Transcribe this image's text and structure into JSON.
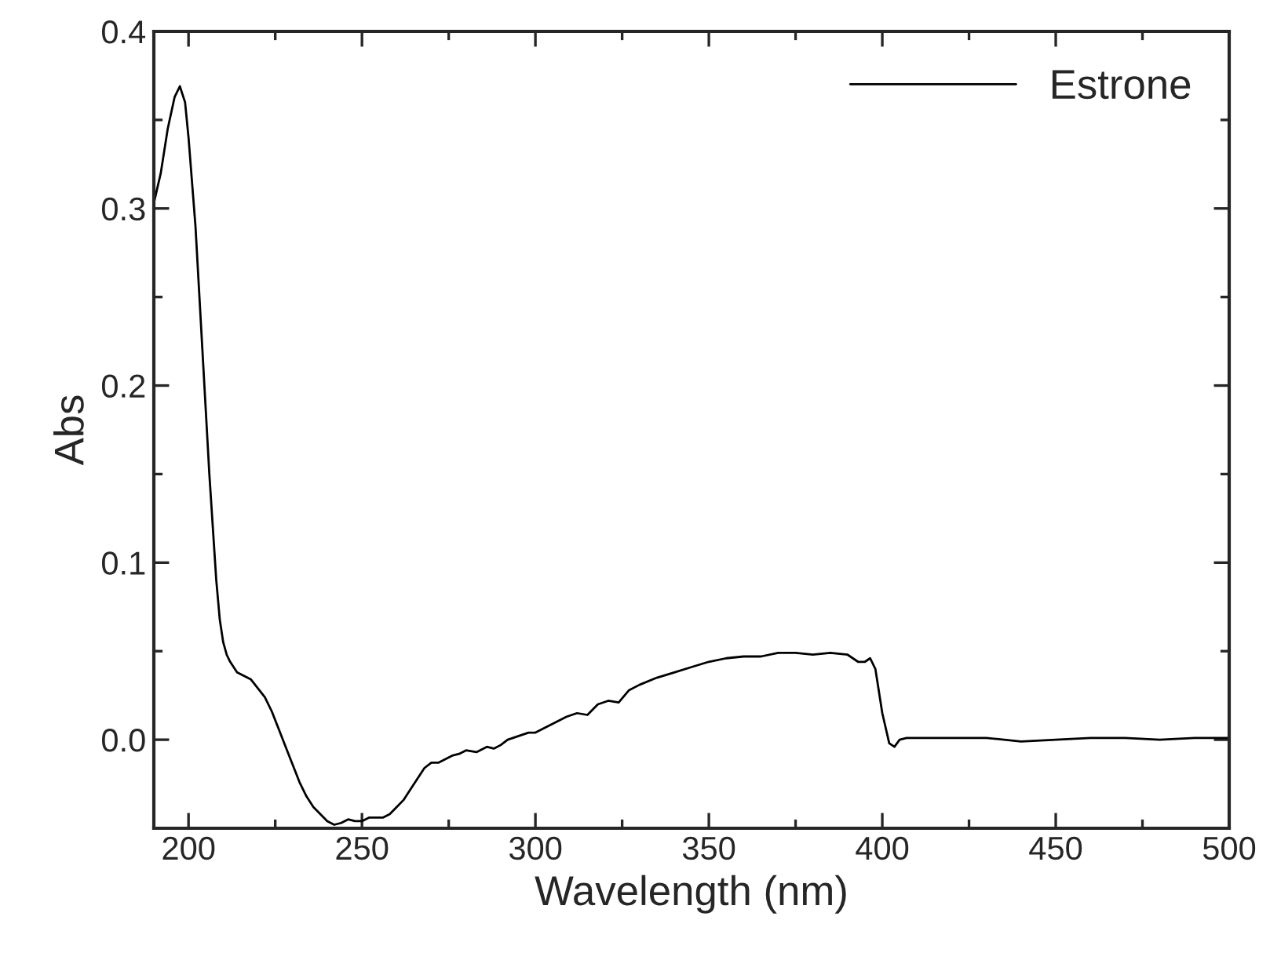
{
  "chart_data": {
    "type": "line",
    "xlabel": "Wavelength (nm)",
    "ylabel": "Abs",
    "xlim": [
      190,
      500
    ],
    "ylim": [
      -0.05,
      0.4
    ],
    "xticks": [
      200,
      250,
      300,
      350,
      400,
      450,
      500
    ],
    "yticks": [
      {
        "value": 0,
        "label": "0.0"
      },
      {
        "value": 0.1,
        "label": "0.1"
      },
      {
        "value": 0.2,
        "label": "0.2"
      },
      {
        "value": 0.3,
        "label": "0.3"
      },
      {
        "value": 0.4,
        "label": "0.4"
      }
    ],
    "legend": "top right",
    "grid": false,
    "marker": "none",
    "line_style": "solid",
    "series": [
      {
        "name": "Estrone",
        "color": "#000000",
        "x": [
          190,
          192,
          194,
          196,
          197.5,
          199,
          200,
          202,
          204,
          206,
          208,
          209,
          210,
          211,
          212,
          214,
          216,
          218,
          220,
          222,
          224,
          226,
          228,
          230,
          232,
          234,
          236,
          238,
          240,
          242,
          244,
          246,
          248,
          250,
          252,
          254,
          256,
          258,
          260,
          262,
          264,
          266,
          268,
          270,
          272,
          274,
          276,
          278,
          280,
          283,
          286,
          288,
          290,
          292,
          295,
          298,
          300,
          303,
          306,
          309,
          312,
          315,
          318,
          321,
          324,
          327,
          330,
          335,
          340,
          345,
          350,
          355,
          360,
          365,
          370,
          375,
          380,
          385,
          390,
          393,
          395,
          396.5,
          398,
          400,
          402,
          403.5,
          405,
          407,
          410,
          420,
          430,
          440,
          450,
          460,
          470,
          480,
          490,
          500
        ],
        "values": [
          0.303,
          0.32,
          0.345,
          0.363,
          0.369,
          0.36,
          0.34,
          0.29,
          0.22,
          0.15,
          0.09,
          0.068,
          0.055,
          0.048,
          0.044,
          0.038,
          0.036,
          0.034,
          0.029,
          0.024,
          0.016,
          0.006,
          -0.004,
          -0.014,
          -0.024,
          -0.032,
          -0.038,
          -0.042,
          -0.046,
          -0.048,
          -0.047,
          -0.045,
          -0.046,
          -0.046,
          -0.044,
          -0.044,
          -0.044,
          -0.042,
          -0.038,
          -0.034,
          -0.028,
          -0.022,
          -0.016,
          -0.013,
          -0.013,
          -0.011,
          -0.009,
          -0.008,
          -0.006,
          -0.007,
          -0.004,
          -0.005,
          -0.003,
          0.0,
          0.002,
          0.004,
          0.004,
          0.007,
          0.01,
          0.013,
          0.015,
          0.014,
          0.02,
          0.022,
          0.021,
          0.028,
          0.031,
          0.035,
          0.038,
          0.041,
          0.044,
          0.046,
          0.047,
          0.047,
          0.049,
          0.049,
          0.048,
          0.049,
          0.048,
          0.044,
          0.044,
          0.046,
          0.04,
          0.015,
          -0.002,
          -0.004,
          0.0,
          0.001,
          0.001,
          0.001,
          0.001,
          -0.001,
          0.0,
          0.001,
          0.001,
          0.0,
          0.001,
          0.001
        ]
      }
    ]
  }
}
